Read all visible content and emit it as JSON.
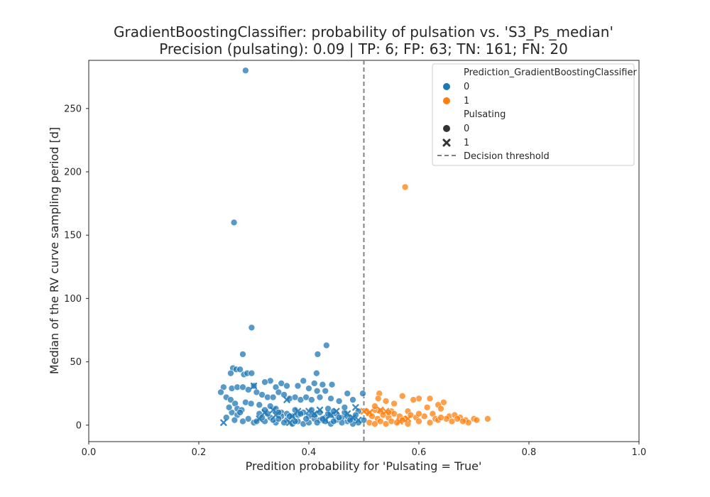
{
  "chart_data": {
    "type": "scatter",
    "title": "GradientBoostingClassifier: probability of pulsation vs. 'S3_Ps_median'",
    "subtitle": "Precision (pulsating): 0.09 | TP: 6; FP: 63; TN: 161; FN: 20",
    "xlabel": "Predition probability for 'Pulsating = True'",
    "ylabel": "Median of the RV curve sampling period [d]",
    "xlim": [
      0.0,
      1.0
    ],
    "ylim": [
      -13,
      288
    ],
    "xticks": [
      "0.0",
      "0.2",
      "0.4",
      "0.6",
      "0.8",
      "1.0"
    ],
    "xtick_values": [
      0.0,
      0.2,
      0.4,
      0.6,
      0.8,
      1.0
    ],
    "yticks": [
      "0",
      "50",
      "100",
      "150",
      "200",
      "250"
    ],
    "ytick_values": [
      0,
      50,
      100,
      150,
      200,
      250
    ],
    "grid": false,
    "threshold": 0.5,
    "legend_position": "top-right",
    "legend": {
      "hue_title": "Prediction_GradientBoostingClassifier",
      "hue_entries": [
        {
          "label": "0",
          "color": "#1f77b4"
        },
        {
          "label": "1",
          "color": "#ff7f0e"
        }
      ],
      "style_title": "Pulsating",
      "style_entries": [
        {
          "label": "0",
          "marker": "circle"
        },
        {
          "label": "1",
          "marker": "x"
        }
      ],
      "threshold_label": "Decision threshold"
    },
    "series": [
      {
        "name": "0",
        "color": "#1f77b4",
        "points": [
          [
            0.285,
            280
          ],
          [
            0.264,
            160
          ],
          [
            0.296,
            77
          ],
          [
            0.432,
            63
          ],
          [
            0.28,
            56
          ],
          [
            0.416,
            56
          ],
          [
            0.262,
            45
          ],
          [
            0.268,
            44
          ],
          [
            0.275,
            44
          ],
          [
            0.258,
            41
          ],
          [
            0.282,
            40
          ],
          [
            0.288,
            41
          ],
          [
            0.296,
            41
          ],
          [
            0.414,
            41
          ],
          [
            0.425,
            32
          ],
          [
            0.41,
            33
          ],
          [
            0.442,
            32
          ],
          [
            0.35,
            33
          ],
          [
            0.33,
            35
          ],
          [
            0.32,
            34
          ],
          [
            0.34,
            30
          ],
          [
            0.36,
            31
          ],
          [
            0.38,
            31
          ],
          [
            0.39,
            35
          ],
          [
            0.4,
            29
          ],
          [
            0.415,
            27
          ],
          [
            0.43,
            27
          ],
          [
            0.47,
            25
          ],
          [
            0.498,
            25
          ],
          [
            0.245,
            30
          ],
          [
            0.26,
            29
          ],
          [
            0.27,
            30
          ],
          [
            0.28,
            30
          ],
          [
            0.29,
            28
          ],
          [
            0.3,
            31
          ],
          [
            0.305,
            26
          ],
          [
            0.315,
            24
          ],
          [
            0.325,
            22
          ],
          [
            0.335,
            22
          ],
          [
            0.345,
            26
          ],
          [
            0.355,
            24
          ],
          [
            0.365,
            21
          ],
          [
            0.375,
            22
          ],
          [
            0.385,
            20
          ],
          [
            0.395,
            22
          ],
          [
            0.405,
            20
          ],
          [
            0.42,
            22
          ],
          [
            0.44,
            21
          ],
          [
            0.455,
            19
          ],
          [
            0.48,
            20
          ],
          [
            0.24,
            26
          ],
          [
            0.25,
            22
          ],
          [
            0.258,
            20
          ],
          [
            0.266,
            17
          ],
          [
            0.27,
            13
          ],
          [
            0.278,
            12
          ],
          [
            0.285,
            18
          ],
          [
            0.295,
            17
          ],
          [
            0.31,
            16
          ],
          [
            0.32,
            12
          ],
          [
            0.33,
            15
          ],
          [
            0.34,
            13
          ],
          [
            0.35,
            10
          ],
          [
            0.36,
            9
          ],
          [
            0.37,
            7
          ],
          [
            0.38,
            8
          ],
          [
            0.39,
            10
          ],
          [
            0.4,
            7
          ],
          [
            0.41,
            5
          ],
          [
            0.42,
            4
          ],
          [
            0.43,
            6
          ],
          [
            0.44,
            8
          ],
          [
            0.45,
            4
          ],
          [
            0.46,
            6
          ],
          [
            0.47,
            3
          ],
          [
            0.48,
            5
          ],
          [
            0.49,
            2
          ],
          [
            0.5,
            4
          ],
          [
            0.25,
            6
          ],
          [
            0.26,
            10
          ],
          [
            0.27,
            8
          ],
          [
            0.28,
            3
          ],
          [
            0.29,
            5
          ],
          [
            0.3,
            2
          ],
          [
            0.31,
            9
          ],
          [
            0.32,
            3
          ],
          [
            0.33,
            6
          ],
          [
            0.34,
            2
          ],
          [
            0.35,
            7
          ],
          [
            0.36,
            4
          ],
          [
            0.37,
            1
          ],
          [
            0.38,
            3
          ],
          [
            0.39,
            1
          ],
          [
            0.4,
            2
          ],
          [
            0.41,
            8
          ],
          [
            0.42,
            10
          ],
          [
            0.43,
            3
          ],
          [
            0.44,
            1
          ],
          [
            0.45,
            9
          ],
          [
            0.46,
            2
          ],
          [
            0.47,
            7
          ],
          [
            0.48,
            1
          ],
          [
            0.49,
            11
          ],
          [
            0.405,
            12
          ],
          [
            0.415,
            2
          ],
          [
            0.425,
            5
          ],
          [
            0.435,
            9
          ],
          [
            0.445,
            3
          ],
          [
            0.455,
            6
          ],
          [
            0.465,
            10
          ],
          [
            0.475,
            4
          ],
          [
            0.485,
            8
          ],
          [
            0.395,
            5
          ],
          [
            0.385,
            9
          ],
          [
            0.375,
            3
          ],
          [
            0.365,
            7
          ],
          [
            0.355,
            2
          ],
          [
            0.345,
            10
          ],
          [
            0.335,
            4
          ],
          [
            0.325,
            9
          ],
          [
            0.315,
            6
          ],
          [
            0.305,
            3
          ],
          [
            0.275,
            10
          ],
          [
            0.265,
            4
          ],
          [
            0.255,
            14
          ],
          [
            0.345,
            5
          ],
          [
            0.375,
            12
          ],
          [
            0.435,
            13
          ],
          [
            0.445,
            11
          ],
          [
            0.465,
            14
          ]
        ]
      },
      {
        "name": "1",
        "color": "#ff7f0e",
        "points": [
          [
            0.575,
            188
          ],
          [
            0.528,
            25
          ],
          [
            0.57,
            23
          ],
          [
            0.526,
            21
          ],
          [
            0.6,
            21
          ],
          [
            0.54,
            19
          ],
          [
            0.59,
            20
          ],
          [
            0.62,
            21
          ],
          [
            0.645,
            18
          ],
          [
            0.555,
            17
          ],
          [
            0.635,
            16
          ],
          [
            0.615,
            14
          ],
          [
            0.64,
            13
          ],
          [
            0.52,
            12
          ],
          [
            0.53,
            11
          ],
          [
            0.505,
            11
          ],
          [
            0.55,
            11
          ],
          [
            0.58,
            11
          ],
          [
            0.51,
            9
          ],
          [
            0.515,
            7
          ],
          [
            0.525,
            5
          ],
          [
            0.535,
            8
          ],
          [
            0.545,
            6
          ],
          [
            0.555,
            9
          ],
          [
            0.565,
            7
          ],
          [
            0.575,
            5
          ],
          [
            0.585,
            8
          ],
          [
            0.595,
            6
          ],
          [
            0.61,
            7
          ],
          [
            0.625,
            9
          ],
          [
            0.63,
            5
          ],
          [
            0.655,
            7
          ],
          [
            0.665,
            8
          ],
          [
            0.675,
            6
          ],
          [
            0.685,
            4
          ],
          [
            0.7,
            5
          ],
          [
            0.705,
            4
          ],
          [
            0.725,
            5
          ],
          [
            0.51,
            2
          ],
          [
            0.52,
            1
          ],
          [
            0.53,
            3
          ],
          [
            0.54,
            1
          ],
          [
            0.55,
            3
          ],
          [
            0.56,
            2
          ],
          [
            0.57,
            4
          ],
          [
            0.58,
            1
          ],
          [
            0.6,
            3
          ],
          [
            0.62,
            2
          ],
          [
            0.635,
            4
          ],
          [
            0.65,
            5
          ],
          [
            0.66,
            3
          ],
          [
            0.67,
            5
          ],
          [
            0.69,
            2
          ],
          [
            0.52,
            15
          ],
          [
            0.545,
            10
          ],
          [
            0.6,
            9
          ],
          [
            0.64,
            6
          ],
          [
            0.68,
            3
          ]
        ]
      }
    ],
    "pulsating_points": [
      [
        0.245,
        2
      ],
      [
        0.3,
        31
      ],
      [
        0.31,
        5
      ],
      [
        0.32,
        10
      ],
      [
        0.34,
        8
      ],
      [
        0.36,
        20
      ],
      [
        0.37,
        7
      ],
      [
        0.38,
        11
      ],
      [
        0.4,
        11
      ],
      [
        0.41,
        9
      ],
      [
        0.42,
        12
      ],
      [
        0.44,
        8
      ],
      [
        0.45,
        11
      ],
      [
        0.47,
        9
      ],
      [
        0.48,
        6
      ],
      [
        0.49,
        4
      ],
      [
        0.485,
        14
      ],
      [
        0.5,
        11
      ],
      [
        0.51,
        10
      ],
      [
        0.54,
        11
      ],
      [
        0.565,
        3
      ],
      [
        0.53,
        12
      ],
      [
        0.58,
        5
      ],
      [
        0.335,
        12
      ],
      [
        0.43,
        4
      ],
      [
        0.365,
        2
      ]
    ]
  }
}
